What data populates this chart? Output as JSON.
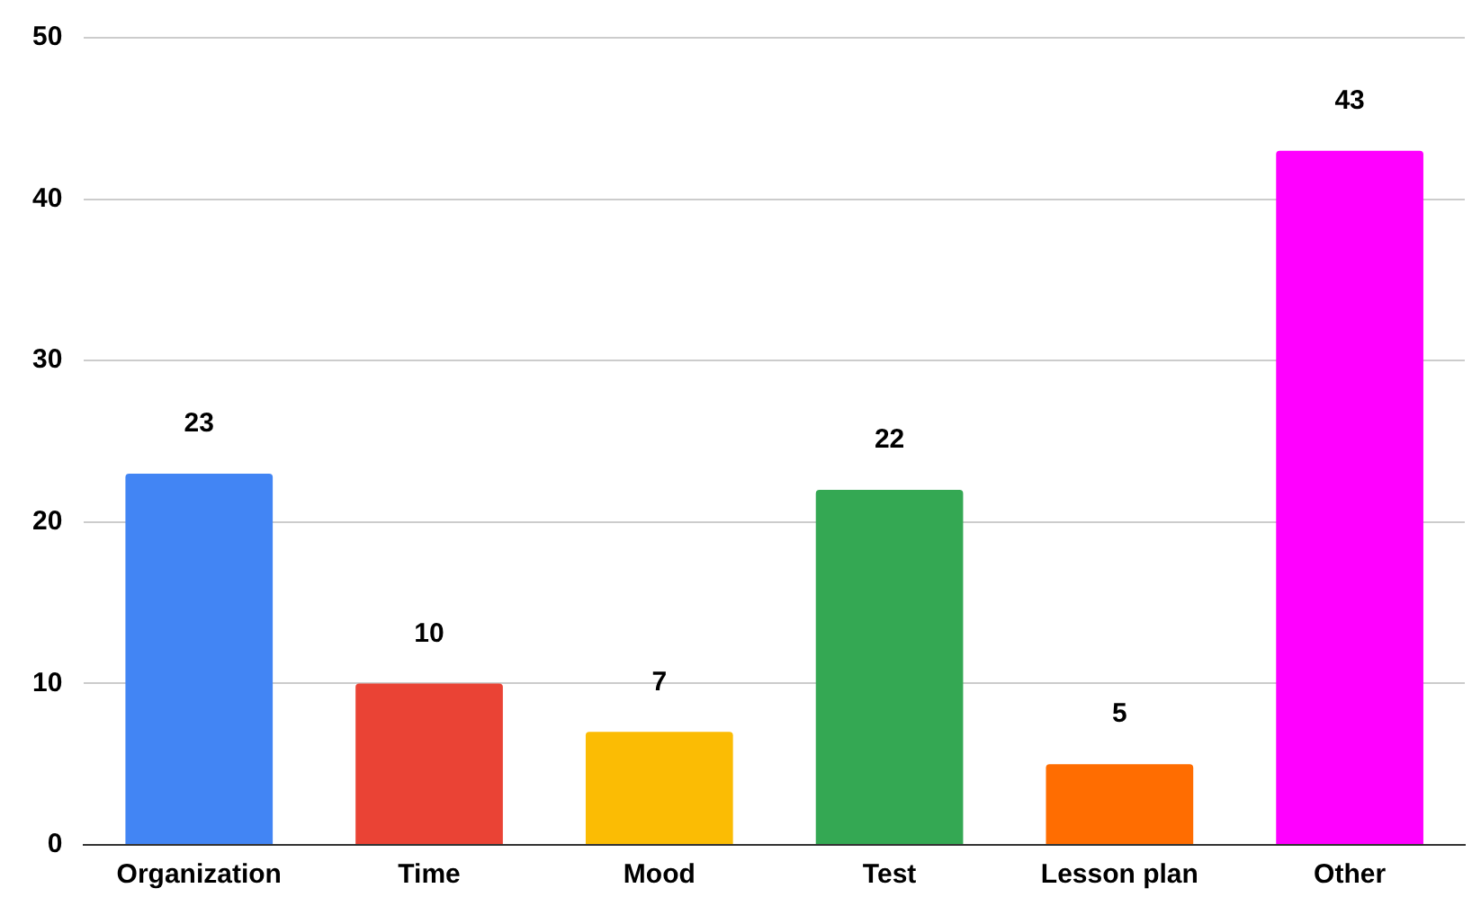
{
  "chart_data": {
    "type": "bar",
    "categories": [
      "Organization",
      "Time",
      "Mood",
      "Test",
      "Lesson plan",
      "Other"
    ],
    "values": [
      23,
      10,
      7,
      22,
      5,
      43
    ],
    "colors": [
      "#4285f4",
      "#ea4335",
      "#fbbc04",
      "#34a853",
      "#ff6d01",
      "#ff00ff"
    ],
    "ylim": [
      0,
      50
    ],
    "yticks": [
      0,
      10,
      20,
      30,
      40,
      50
    ],
    "grid": "y",
    "data_labels": true,
    "legend": false
  }
}
